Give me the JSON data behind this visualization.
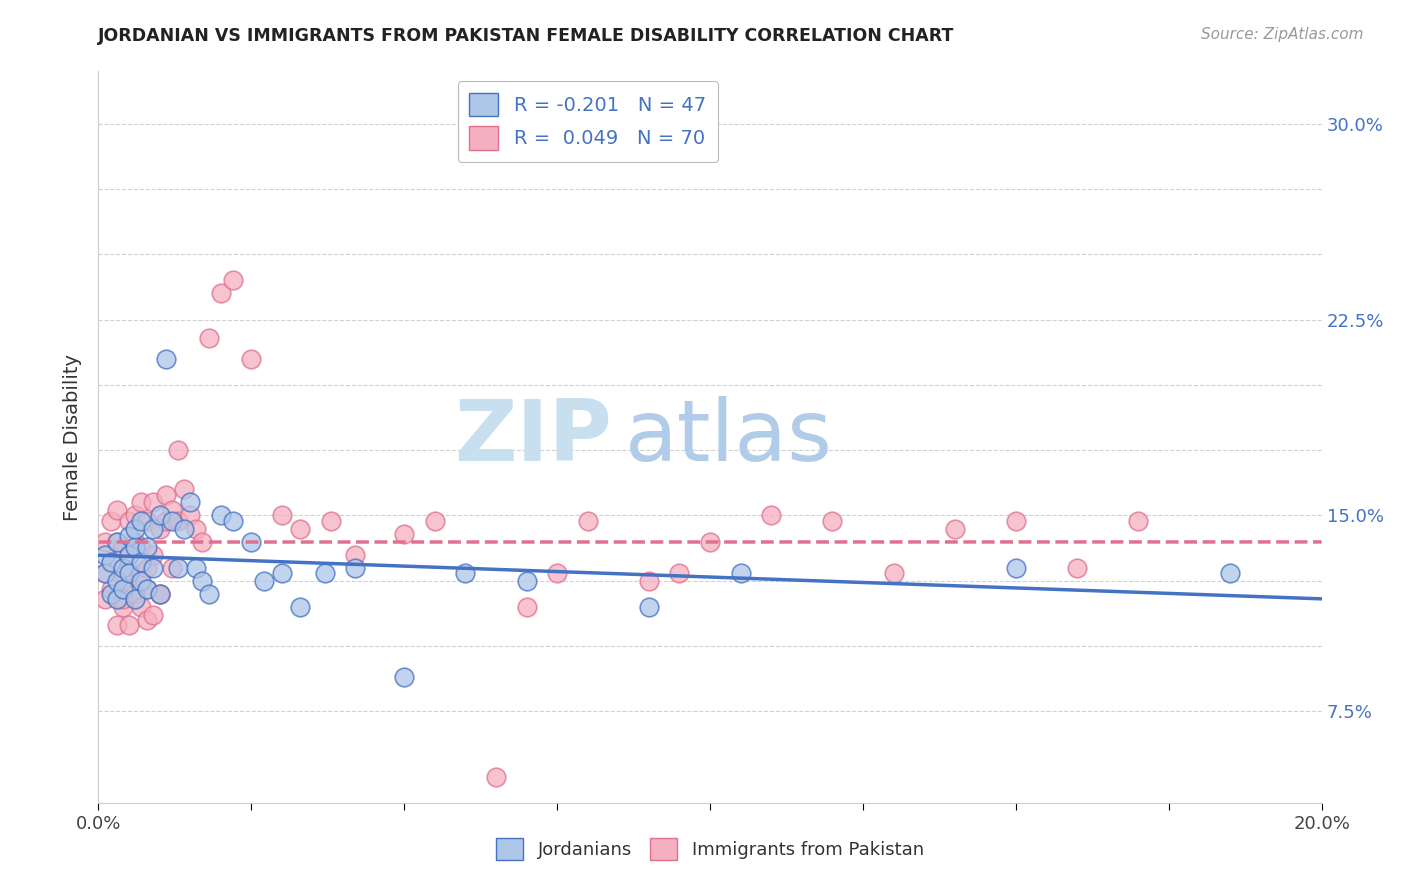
{
  "title": "JORDANIAN VS IMMIGRANTS FROM PAKISTAN FEMALE DISABILITY CORRELATION CHART",
  "source": "Source: ZipAtlas.com",
  "ylabel": "Female Disability",
  "yticks": [
    0.075,
    0.1,
    0.125,
    0.15,
    0.175,
    0.2,
    0.225,
    0.25,
    0.275,
    0.3
  ],
  "ytick_labels": [
    "7.5%",
    "",
    "",
    "15.0%",
    "",
    "",
    "22.5%",
    "",
    "",
    "30.0%"
  ],
  "xlim": [
    0.0,
    0.2
  ],
  "ylim": [
    0.04,
    0.32
  ],
  "legend_r_jordanians": "R = -0.201",
  "legend_n_jordanians": "N = 47",
  "legend_r_pakistan": "R =  0.049",
  "legend_n_pakistan": "N = 70",
  "color_jordanians": "#aec6e8",
  "color_pakistan": "#f4afc0",
  "line_color_jordanians": "#4472c4",
  "line_color_pakistan": "#e07090",
  "watermark_zip_color": "#c8dff0",
  "watermark_atlas_color": "#b0cce8",
  "jordanians_x": [
    0.001,
    0.001,
    0.002,
    0.002,
    0.003,
    0.003,
    0.003,
    0.004,
    0.004,
    0.005,
    0.005,
    0.005,
    0.006,
    0.006,
    0.006,
    0.007,
    0.007,
    0.007,
    0.008,
    0.008,
    0.009,
    0.009,
    0.01,
    0.01,
    0.011,
    0.012,
    0.013,
    0.014,
    0.015,
    0.016,
    0.017,
    0.018,
    0.02,
    0.022,
    0.025,
    0.027,
    0.03,
    0.033,
    0.037,
    0.042,
    0.05,
    0.06,
    0.07,
    0.09,
    0.105,
    0.15,
    0.185
  ],
  "jordanians_y": [
    0.128,
    0.135,
    0.12,
    0.132,
    0.125,
    0.14,
    0.118,
    0.13,
    0.122,
    0.135,
    0.142,
    0.128,
    0.118,
    0.138,
    0.145,
    0.125,
    0.132,
    0.148,
    0.138,
    0.122,
    0.145,
    0.13,
    0.15,
    0.12,
    0.21,
    0.148,
    0.13,
    0.145,
    0.155,
    0.13,
    0.125,
    0.12,
    0.15,
    0.148,
    0.14,
    0.125,
    0.128,
    0.115,
    0.128,
    0.13,
    0.088,
    0.128,
    0.125,
    0.115,
    0.128,
    0.13,
    0.128
  ],
  "pakistan_x": [
    0.001,
    0.001,
    0.001,
    0.002,
    0.002,
    0.002,
    0.003,
    0.003,
    0.003,
    0.004,
    0.004,
    0.004,
    0.005,
    0.005,
    0.005,
    0.006,
    0.006,
    0.006,
    0.007,
    0.007,
    0.007,
    0.008,
    0.008,
    0.008,
    0.009,
    0.009,
    0.01,
    0.01,
    0.011,
    0.011,
    0.012,
    0.012,
    0.013,
    0.013,
    0.014,
    0.015,
    0.016,
    0.017,
    0.018,
    0.02,
    0.022,
    0.025,
    0.03,
    0.033,
    0.038,
    0.042,
    0.05,
    0.055,
    0.065,
    0.07,
    0.075,
    0.08,
    0.09,
    0.095,
    0.1,
    0.11,
    0.12,
    0.13,
    0.14,
    0.15,
    0.16,
    0.17,
    0.003,
    0.004,
    0.005,
    0.006,
    0.007,
    0.008,
    0.009,
    0.01
  ],
  "pakistan_y": [
    0.128,
    0.14,
    0.118,
    0.148,
    0.122,
    0.132,
    0.14,
    0.118,
    0.152,
    0.128,
    0.138,
    0.115,
    0.135,
    0.148,
    0.122,
    0.118,
    0.14,
    0.15,
    0.128,
    0.138,
    0.155,
    0.122,
    0.148,
    0.13,
    0.135,
    0.155,
    0.145,
    0.12,
    0.148,
    0.158,
    0.152,
    0.13,
    0.175,
    0.148,
    0.16,
    0.15,
    0.145,
    0.14,
    0.218,
    0.235,
    0.24,
    0.21,
    0.15,
    0.145,
    0.148,
    0.135,
    0.143,
    0.148,
    0.05,
    0.115,
    0.128,
    0.148,
    0.125,
    0.128,
    0.14,
    0.15,
    0.148,
    0.128,
    0.145,
    0.148,
    0.13,
    0.148,
    0.108,
    0.118,
    0.108,
    0.12,
    0.115,
    0.11,
    0.112,
    0.12
  ]
}
